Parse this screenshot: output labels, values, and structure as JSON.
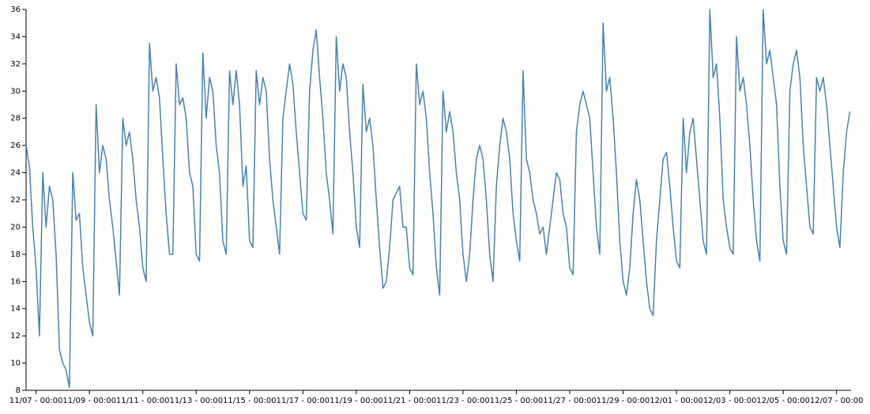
{
  "chart_data": {
    "type": "line",
    "x": [
      "11/06 - 15:00",
      "11/06 - 18:00",
      "11/06 - 21:00",
      "11/07 - 00:00",
      "11/07 - 03:00",
      "11/07 - 06:00",
      "11/07 - 09:00",
      "11/07 - 12:00",
      "11/07 - 15:00",
      "11/07 - 18:00",
      "11/07 - 21:00",
      "11/08 - 00:00",
      "11/08 - 03:00",
      "11/08 - 06:00",
      "11/08 - 09:00",
      "11/08 - 12:00",
      "11/08 - 15:00",
      "11/08 - 18:00",
      "11/08 - 21:00",
      "11/09 - 00:00",
      "11/09 - 03:00",
      "11/09 - 06:00",
      "11/09 - 09:00",
      "11/09 - 12:00",
      "11/09 - 15:00",
      "11/09 - 18:00",
      "11/09 - 21:00",
      "11/10 - 00:00",
      "11/10 - 03:00",
      "11/10 - 06:00",
      "11/10 - 09:00",
      "11/10 - 12:00",
      "11/10 - 15:00",
      "11/10 - 18:00",
      "11/10 - 21:00",
      "11/11 - 00:00",
      "11/11 - 03:00",
      "11/11 - 06:00",
      "11/11 - 09:00",
      "11/11 - 12:00",
      "11/11 - 15:00",
      "11/11 - 18:00",
      "11/11 - 21:00",
      "11/12 - 00:00",
      "11/12 - 03:00",
      "11/12 - 06:00",
      "11/12 - 09:00",
      "11/12 - 12:00",
      "11/12 - 15:00",
      "11/12 - 18:00",
      "11/12 - 21:00",
      "11/13 - 00:00",
      "11/13 - 03:00",
      "11/13 - 06:00",
      "11/13 - 09:00",
      "11/13 - 12:00",
      "11/13 - 15:00",
      "11/13 - 18:00",
      "11/13 - 21:00",
      "11/14 - 00:00",
      "11/14 - 03:00",
      "11/14 - 06:00",
      "11/14 - 09:00",
      "11/14 - 12:00",
      "11/14 - 15:00",
      "11/14 - 18:00",
      "11/14 - 21:00",
      "11/15 - 00:00",
      "11/15 - 03:00",
      "11/15 - 06:00",
      "11/15 - 09:00",
      "11/15 - 12:00",
      "11/15 - 15:00",
      "11/15 - 18:00",
      "11/15 - 21:00",
      "11/16 - 00:00",
      "11/16 - 03:00",
      "11/16 - 06:00",
      "11/16 - 09:00",
      "11/16 - 12:00",
      "11/16 - 15:00",
      "11/16 - 18:00",
      "11/16 - 21:00",
      "11/17 - 00:00",
      "11/17 - 03:00",
      "11/17 - 06:00",
      "11/17 - 09:00",
      "11/17 - 12:00",
      "11/17 - 15:00",
      "11/17 - 18:00",
      "11/17 - 21:00",
      "11/18 - 00:00",
      "11/18 - 03:00",
      "11/18 - 06:00",
      "11/18 - 09:00",
      "11/18 - 12:00",
      "11/18 - 15:00",
      "11/18 - 18:00",
      "11/18 - 21:00",
      "11/19 - 00:00",
      "11/19 - 03:00",
      "11/19 - 06:00",
      "11/19 - 09:00",
      "11/19 - 12:00",
      "11/19 - 15:00",
      "11/19 - 18:00",
      "11/19 - 21:00",
      "11/20 - 00:00",
      "11/20 - 03:00",
      "11/20 - 06:00",
      "11/20 - 09:00",
      "11/20 - 12:00",
      "11/20 - 15:00",
      "11/20 - 18:00",
      "11/20 - 21:00",
      "11/21 - 00:00",
      "11/21 - 03:00",
      "11/21 - 06:00",
      "11/21 - 09:00",
      "11/21 - 12:00",
      "11/21 - 15:00",
      "11/21 - 18:00",
      "11/21 - 21:00",
      "11/22 - 00:00",
      "11/22 - 03:00",
      "11/22 - 06:00",
      "11/22 - 09:00",
      "11/22 - 12:00",
      "11/22 - 15:00",
      "11/22 - 18:00",
      "11/22 - 21:00",
      "11/23 - 00:00",
      "11/23 - 03:00",
      "11/23 - 06:00",
      "11/23 - 09:00",
      "11/23 - 12:00",
      "11/23 - 15:00",
      "11/23 - 18:00",
      "11/23 - 21:00",
      "11/24 - 00:00",
      "11/24 - 03:00",
      "11/24 - 06:00",
      "11/24 - 09:00",
      "11/24 - 12:00",
      "11/24 - 15:00",
      "11/24 - 18:00",
      "11/24 - 21:00",
      "11/25 - 00:00",
      "11/25 - 03:00",
      "11/25 - 06:00",
      "11/25 - 09:00",
      "11/25 - 12:00",
      "11/25 - 15:00",
      "11/25 - 18:00",
      "11/25 - 21:00",
      "11/26 - 00:00",
      "11/26 - 03:00",
      "11/26 - 06:00",
      "11/26 - 09:00",
      "11/26 - 12:00",
      "11/26 - 15:00",
      "11/26 - 18:00",
      "11/26 - 21:00",
      "11/27 - 00:00",
      "11/27 - 03:00",
      "11/27 - 06:00",
      "11/27 - 09:00",
      "11/27 - 12:00",
      "11/27 - 15:00",
      "11/27 - 18:00",
      "11/27 - 21:00",
      "11/28 - 00:00",
      "11/28 - 03:00",
      "11/28 - 06:00",
      "11/28 - 09:00",
      "11/28 - 12:00",
      "11/28 - 15:00",
      "11/28 - 18:00",
      "11/28 - 21:00",
      "11/29 - 00:00",
      "11/29 - 03:00",
      "11/29 - 06:00",
      "11/29 - 09:00",
      "11/29 - 12:00",
      "11/29 - 15:00",
      "11/29 - 18:00",
      "11/29 - 21:00",
      "11/30 - 00:00",
      "11/30 - 03:00",
      "11/30 - 06:00",
      "11/30 - 09:00",
      "11/30 - 12:00",
      "11/30 - 15:00",
      "11/30 - 18:00",
      "11/30 - 21:00",
      "12/01 - 00:00",
      "12/01 - 03:00",
      "12/01 - 06:00",
      "12/01 - 09:00",
      "12/01 - 12:00",
      "12/01 - 15:00",
      "12/01 - 18:00",
      "12/01 - 21:00",
      "12/02 - 00:00",
      "12/02 - 03:00",
      "12/02 - 06:00",
      "12/02 - 09:00",
      "12/02 - 12:00",
      "12/02 - 15:00",
      "12/02 - 18:00",
      "12/02 - 21:00",
      "12/03 - 00:00",
      "12/03 - 03:00",
      "12/03 - 06:00",
      "12/03 - 09:00",
      "12/03 - 12:00",
      "12/03 - 15:00",
      "12/03 - 18:00",
      "12/03 - 21:00",
      "12/04 - 00:00",
      "12/04 - 03:00",
      "12/04 - 06:00",
      "12/04 - 09:00",
      "12/04 - 12:00",
      "12/04 - 15:00",
      "12/04 - 18:00",
      "12/04 - 21:00",
      "12/05 - 00:00",
      "12/05 - 03:00",
      "12/05 - 06:00",
      "12/05 - 09:00",
      "12/05 - 12:00",
      "12/05 - 15:00",
      "12/05 - 18:00",
      "12/05 - 21:00",
      "12/06 - 00:00",
      "12/06 - 03:00",
      "12/06 - 06:00",
      "12/06 - 09:00",
      "12/06 - 12:00",
      "12/06 - 15:00",
      "12/06 - 18:00",
      "12/06 - 21:00",
      "12/07 - 00:00",
      "12/07 - 03:00",
      "12/07 - 06:00",
      "12/07 - 09:00",
      "12/07 - 12:00"
    ],
    "values": [
      26,
      24.5,
      20,
      17,
      12,
      24,
      20,
      23,
      22,
      18,
      11,
      10,
      9.5,
      8.2,
      24,
      20.5,
      21,
      17,
      15,
      13,
      12,
      29,
      24,
      26,
      25,
      22,
      20,
      17.5,
      15,
      28,
      26,
      27,
      25,
      22,
      20,
      17,
      16,
      33.5,
      30,
      31,
      29.5,
      25,
      21,
      18,
      18,
      32,
      29,
      29.5,
      28,
      24,
      23,
      18,
      17.5,
      32.8,
      28,
      31,
      30,
      26,
      24,
      19,
      18,
      31.5,
      29,
      31.5,
      29,
      23,
      24.5,
      19,
      18.5,
      31.5,
      29,
      31,
      30,
      25,
      22,
      20,
      18,
      28,
      30,
      32,
      30.5,
      27,
      24,
      21,
      20.5,
      30,
      33,
      34.5,
      31,
      28,
      24,
      22,
      19.5,
      34,
      30,
      32,
      31,
      27,
      24,
      20,
      18.5,
      30.5,
      27,
      28,
      26,
      22,
      18.5,
      15.5,
      16,
      18.5,
      22,
      22.5,
      23,
      20,
      20,
      17,
      16.5,
      32,
      29,
      30,
      28,
      24,
      21,
      17,
      15,
      30,
      27,
      28.5,
      27,
      24,
      22,
      18,
      16,
      18,
      22,
      25,
      26,
      25,
      22,
      18,
      16,
      23,
      26,
      28,
      27,
      25,
      21,
      19,
      17.5,
      31.5,
      25,
      24,
      22,
      21,
      19.5,
      20,
      18,
      20,
      22,
      24,
      23.5,
      21,
      20,
      17,
      16.5,
      27,
      29,
      30,
      29,
      28,
      24,
      20,
      18,
      35,
      30,
      31,
      28,
      24,
      19,
      16,
      15,
      17,
      21,
      23.5,
      22,
      19,
      16,
      14,
      13.5,
      19,
      22,
      25,
      25.5,
      23,
      20,
      17.5,
      17,
      28,
      24,
      27,
      28,
      25,
      22,
      19,
      18,
      36,
      31,
      32,
      28,
      22,
      20,
      18.5,
      18,
      34,
      30,
      31,
      29,
      26,
      22,
      19,
      17.5,
      36,
      32,
      33,
      31,
      29,
      23,
      19,
      18,
      30,
      32,
      33,
      31,
      26,
      23,
      20,
      19.5,
      31,
      30,
      31,
      29,
      26,
      23,
      20,
      18.5,
      24,
      27,
      28.5
    ],
    "color": "#4682b4",
    "xlim": [
      "11/06 - 15:00",
      "12/07 - 13:00"
    ],
    "xticks": [
      "11/07 - 00:00",
      "11/09 - 00:00",
      "11/11 - 00:00",
      "11/13 - 00:00",
      "11/15 - 00:00",
      "11/17 - 00:00",
      "11/19 - 00:00",
      "11/21 - 00:00",
      "11/23 - 00:00",
      "11/25 - 00:00",
      "11/27 - 00:00",
      "11/29 - 00:00",
      "12/01 - 00:00",
      "12/03 - 00:00",
      "12/05 - 00:00",
      "12/07 - 00:00"
    ],
    "ylim": [
      8,
      36
    ],
    "yticks": [
      8,
      10,
      12,
      14,
      16,
      18,
      20,
      22,
      24,
      26,
      28,
      30,
      32,
      34,
      36
    ]
  }
}
